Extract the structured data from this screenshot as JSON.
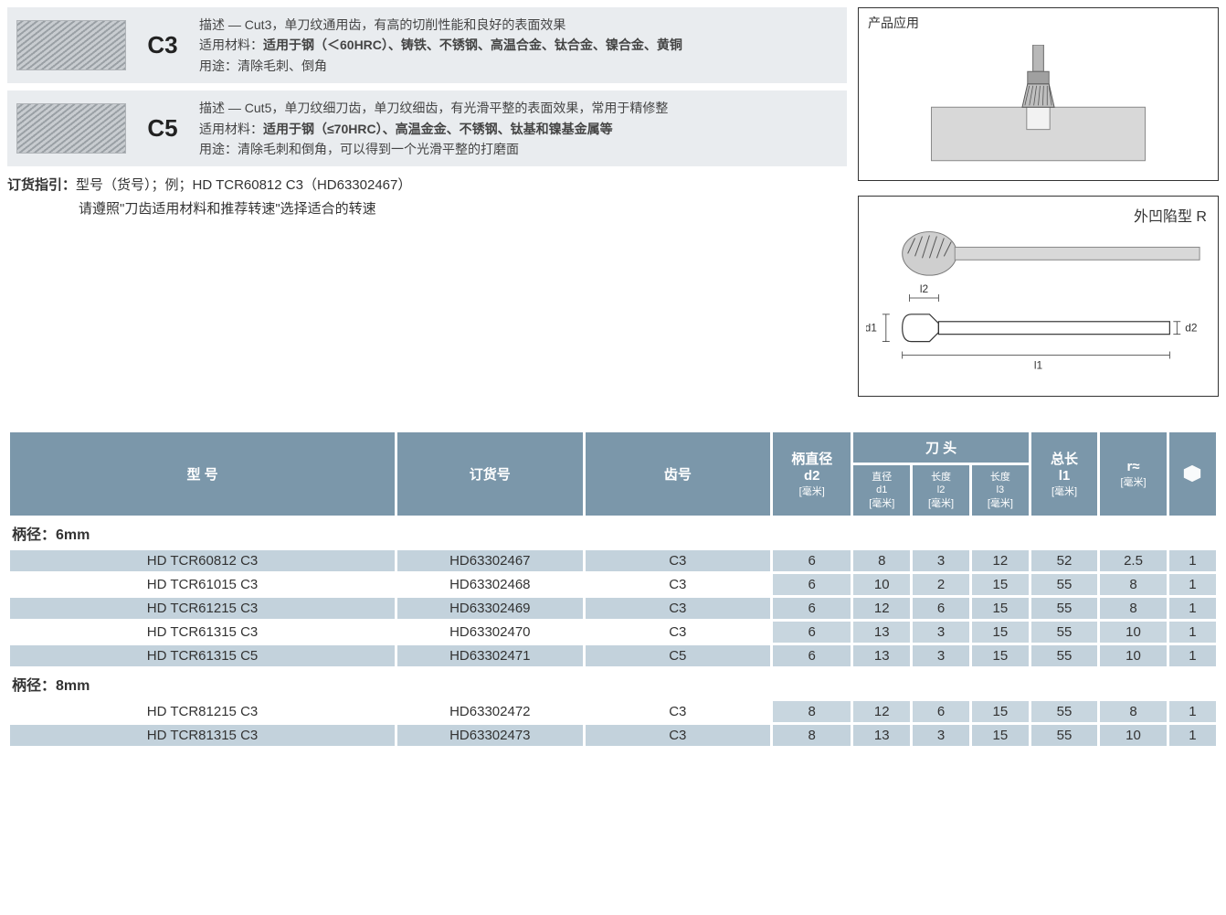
{
  "colors": {
    "header_bg": "#7b97aa",
    "row_blue": "#c3d2dc",
    "row_white": "#ffffff",
    "spacer": "#ffffff",
    "text": "#333333"
  },
  "cuts": [
    {
      "code": "C3",
      "desc_line": "描述 — Cut3，单刀纹通用齿，有高的切削性能和良好的表面效果",
      "material_prefix": "适用材料：",
      "material_bold": "适用于钢（＜60HRC）、铸铁、不锈钢、高温合金、钛合金、镍合金、黄铜",
      "use_line": "用途：清除毛刺、倒角"
    },
    {
      "code": "C5",
      "desc_line": "描述 — Cut5，单刀纹细刀齿，单刀纹细齿，有光滑平整的表面效果，常用于精修整",
      "material_prefix": "适用材料：",
      "material_bold": "适用于钢（≤70HRC）、高温金金、不锈钢、钛基和镍基金属等",
      "use_line": "用途：清除毛刺和倒角，可以得到一个光滑平整的打磨面"
    }
  ],
  "order_guide": {
    "label": "订货指引：",
    "line1": "型号（货号）；例；HD TCR60812 C3（HD63302467）",
    "line2": "请遵照\"刀齿适用材料和推荐转速\"选择适合的转速"
  },
  "figures": {
    "application_title": "产品应用",
    "product_title": "外凹陷型 R",
    "dim_labels": {
      "d1": "d1",
      "d2": "d2",
      "l1": "l1",
      "l2": "l2"
    }
  },
  "table_headers": {
    "model": "型 号",
    "order": "订货号",
    "tooth": "齿号",
    "d2_top": "柄直径",
    "d2_mid": "d2",
    "unit": "[毫米]",
    "head": "刀 头",
    "d1_top": "直径",
    "d1_mid": "d1",
    "l2_top": "长度",
    "l2_mid": "l2",
    "l3_top": "长度",
    "l3_mid": "l3",
    "l1_top": "总长",
    "l1_mid": "l1",
    "r_top": "r≈"
  },
  "sections": [
    {
      "title": "柄径：6mm",
      "rows": [
        {
          "model": "HD TCR60812 C3",
          "order": "HD63302467",
          "tooth": "C3",
          "d2": "6",
          "d1": "8",
          "l2": "3",
          "l3": "12",
          "l1": "52",
          "r": "2.5",
          "pkg": "1"
        },
        {
          "model": "HD TCR61015 C3",
          "order": "HD63302468",
          "tooth": "C3",
          "d2": "6",
          "d1": "10",
          "l2": "2",
          "l3": "15",
          "l1": "55",
          "r": "8",
          "pkg": "1"
        },
        {
          "model": "HD TCR61215 C3",
          "order": "HD63302469",
          "tooth": "C3",
          "d2": "6",
          "d1": "12",
          "l2": "6",
          "l3": "15",
          "l1": "55",
          "r": "8",
          "pkg": "1"
        },
        {
          "model": "HD TCR61315 C3",
          "order": "HD63302470",
          "tooth": "C3",
          "d2": "6",
          "d1": "13",
          "l2": "3",
          "l3": "15",
          "l1": "55",
          "r": "10",
          "pkg": "1"
        },
        {
          "model": "HD TCR61315 C5",
          "order": "HD63302471",
          "tooth": "C5",
          "d2": "6",
          "d1": "13",
          "l2": "3",
          "l3": "15",
          "l1": "55",
          "r": "10",
          "pkg": "1"
        }
      ]
    },
    {
      "title": "柄径：8mm",
      "rows": [
        {
          "model": "HD TCR81215 C3",
          "order": "HD63302472",
          "tooth": "C3",
          "d2": "8",
          "d1": "12",
          "l2": "6",
          "l3": "15",
          "l1": "55",
          "r": "8",
          "pkg": "1"
        },
        {
          "model": "HD TCR81315 C3",
          "order": "HD63302473",
          "tooth": "C3",
          "d2": "8",
          "d1": "13",
          "l2": "3",
          "l3": "15",
          "l1": "55",
          "r": "10",
          "pkg": "1"
        }
      ]
    }
  ]
}
